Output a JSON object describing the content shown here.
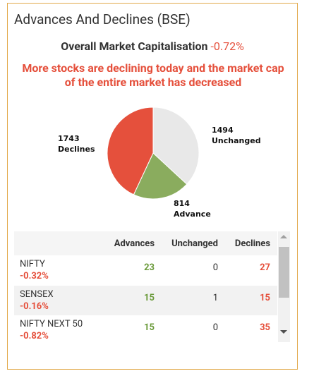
{
  "title": "Advances And Declines (BSE)",
  "market_cap": {
    "label": "Overall Market Capitalisation",
    "value": "-0.72%"
  },
  "message": "More stocks are declining today and the market cap of the entire market has decreased",
  "chart_data": {
    "type": "pie",
    "categories": [
      "Unchanged",
      "Advance",
      "Declines"
    ],
    "values": [
      1494,
      814,
      1743
    ],
    "colors": [
      "#e8e8e8",
      "#8aac5e",
      "#e5503c"
    ]
  },
  "table": {
    "columns": [
      "Advances",
      "Unchanged",
      "Declines"
    ],
    "rows": [
      {
        "name": "NIFTY",
        "change": "-0.32%",
        "values": [
          23,
          0,
          27
        ]
      },
      {
        "name": "SENSEX",
        "change": "-0.16%",
        "values": [
          15,
          1,
          15
        ]
      },
      {
        "name": "NIFTY NEXT 50",
        "change": "-0.82%",
        "values": [
          15,
          0,
          35
        ]
      }
    ]
  }
}
